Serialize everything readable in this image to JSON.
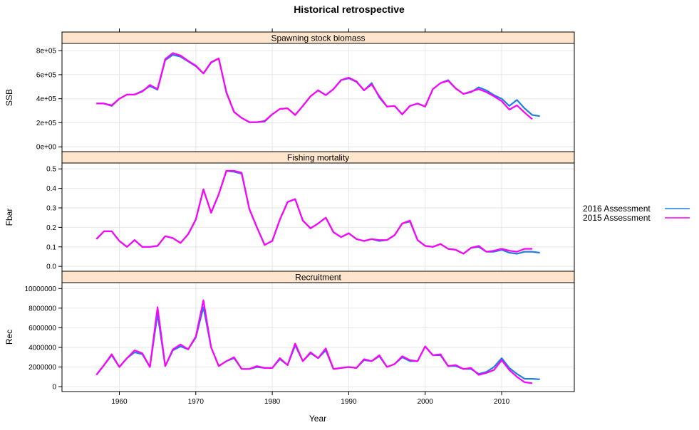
{
  "chart_data": {
    "type": "line",
    "title": "Historical retrospective",
    "xlabel": "Year",
    "xlim": [
      1952.5,
      2019.5
    ],
    "xticks": [
      1960,
      1970,
      1980,
      1990,
      2000,
      2010
    ],
    "legend": {
      "placement": "right",
      "entries": [
        {
          "name": "2016 Assessment",
          "color": "#1f7fe0"
        },
        {
          "name": "2015 Assessment",
          "color": "#ff00ff"
        }
      ]
    },
    "panels": [
      {
        "id": "ssb",
        "strip": "Spawning stock biomass",
        "ylabel": "SSB",
        "ylim": [
          -40000,
          860000
        ],
        "yticks": [
          0,
          200000,
          400000,
          600000,
          800000
        ],
        "yticklabels": [
          "0e+00",
          "2e+05",
          "4e+05",
          "6e+05",
          "8e+05"
        ],
        "series": [
          {
            "name": "2016 Assessment",
            "x": [
              1957,
              1958,
              1959,
              1960,
              1961,
              1962,
              1963,
              1964,
              1965,
              1966,
              1967,
              1968,
              1969,
              1970,
              1971,
              1972,
              1973,
              1974,
              1975,
              1976,
              1977,
              1978,
              1979,
              1980,
              1981,
              1982,
              1983,
              1984,
              1985,
              1986,
              1987,
              1988,
              1989,
              1990,
              1991,
              1992,
              1993,
              1994,
              1995,
              1996,
              1997,
              1998,
              1999,
              2000,
              2001,
              2002,
              2003,
              2004,
              2005,
              2006,
              2007,
              2008,
              2009,
              2010,
              2011,
              2012,
              2013,
              2014,
              2015
            ],
            "values": [
              360000,
              360000,
              340000,
              400000,
              435000,
              435000,
              465000,
              505000,
              475000,
              720000,
              765000,
              750000,
              710000,
              670000,
              610000,
              700000,
              735000,
              450000,
              290000,
              240000,
              205000,
              205000,
              210000,
              270000,
              315000,
              320000,
              265000,
              340000,
              420000,
              470000,
              430000,
              480000,
              555000,
              570000,
              540000,
              470000,
              530000,
              410000,
              335000,
              340000,
              270000,
              340000,
              360000,
              335000,
              480000,
              530000,
              555000,
              485000,
              440000,
              455000,
              495000,
              470000,
              430000,
              400000,
              340000,
              390000,
              320000,
              265000,
              255000
            ]
          },
          {
            "name": "2015 Assessment",
            "x": [
              1957,
              1958,
              1959,
              1960,
              1961,
              1962,
              1963,
              1964,
              1965,
              1966,
              1967,
              1968,
              1969,
              1970,
              1971,
              1972,
              1973,
              1974,
              1975,
              1976,
              1977,
              1978,
              1979,
              1980,
              1981,
              1982,
              1983,
              1984,
              1985,
              1986,
              1987,
              1988,
              1989,
              1990,
              1991,
              1992,
              1993,
              1994,
              1995,
              1996,
              1997,
              1998,
              1999,
              2000,
              2001,
              2002,
              2003,
              2004,
              2005,
              2006,
              2007,
              2008,
              2009,
              2010,
              2011,
              2012,
              2013,
              2014
            ],
            "values": [
              360000,
              360000,
              345000,
              400000,
              435000,
              435000,
              460000,
              515000,
              480000,
              730000,
              780000,
              760000,
              715000,
              675000,
              610000,
              705000,
              735000,
              455000,
              290000,
              240000,
              205000,
              205000,
              215000,
              270000,
              315000,
              320000,
              265000,
              340000,
              420000,
              470000,
              430000,
              480000,
              555000,
              575000,
              545000,
              470000,
              520000,
              420000,
              335000,
              340000,
              270000,
              340000,
              360000,
              335000,
              480000,
              530000,
              550000,
              485000,
              440000,
              460000,
              480000,
              455000,
              420000,
              380000,
              310000,
              345000,
              285000,
              230000
            ]
          }
        ]
      },
      {
        "id": "fbar",
        "strip": "Fishing mortality",
        "ylabel": "Fbar",
        "ylim": [
          -0.025,
          0.53
        ],
        "yticks": [
          0,
          0.1,
          0.2,
          0.3,
          0.4,
          0.5
        ],
        "yticklabels": [
          "0.0",
          "0.1",
          "0.2",
          "0.3",
          "0.4",
          "0.5"
        ],
        "series": [
          {
            "name": "2016 Assessment",
            "x": [
              1957,
              1958,
              1959,
              1960,
              1961,
              1962,
              1963,
              1964,
              1965,
              1966,
              1967,
              1968,
              1969,
              1970,
              1971,
              1972,
              1973,
              1974,
              1975,
              1976,
              1977,
              1978,
              1979,
              1980,
              1981,
              1982,
              1983,
              1984,
              1985,
              1986,
              1987,
              1988,
              1989,
              1990,
              1991,
              1992,
              1993,
              1994,
              1995,
              1996,
              1997,
              1998,
              1999,
              2000,
              2001,
              2002,
              2003,
              2004,
              2005,
              2006,
              2007,
              2008,
              2009,
              2010,
              2011,
              2012,
              2013,
              2014,
              2015
            ],
            "values": [
              0.14,
              0.18,
              0.18,
              0.13,
              0.1,
              0.135,
              0.1,
              0.1,
              0.105,
              0.155,
              0.145,
              0.12,
              0.165,
              0.24,
              0.395,
              0.275,
              0.37,
              0.49,
              0.485,
              0.475,
              0.295,
              0.2,
              0.11,
              0.13,
              0.24,
              0.33,
              0.345,
              0.235,
              0.195,
              0.22,
              0.25,
              0.175,
              0.15,
              0.17,
              0.14,
              0.13,
              0.14,
              0.13,
              0.135,
              0.16,
              0.22,
              0.23,
              0.135,
              0.105,
              0.1,
              0.115,
              0.09,
              0.085,
              0.065,
              0.095,
              0.1,
              0.075,
              0.075,
              0.085,
              0.07,
              0.065,
              0.075,
              0.075,
              0.07
            ]
          },
          {
            "name": "2015 Assessment",
            "x": [
              1957,
              1958,
              1959,
              1960,
              1961,
              1962,
              1963,
              1964,
              1965,
              1966,
              1967,
              1968,
              1969,
              1970,
              1971,
              1972,
              1973,
              1974,
              1975,
              1976,
              1977,
              1978,
              1979,
              1980,
              1981,
              1982,
              1983,
              1984,
              1985,
              1986,
              1987,
              1988,
              1989,
              1990,
              1991,
              1992,
              1993,
              1994,
              1995,
              1996,
              1997,
              1998,
              1999,
              2000,
              2001,
              2002,
              2003,
              2004,
              2005,
              2006,
              2007,
              2008,
              2009,
              2010,
              2011,
              2012,
              2013,
              2014
            ],
            "values": [
              0.14,
              0.18,
              0.18,
              0.13,
              0.1,
              0.135,
              0.1,
              0.1,
              0.105,
              0.155,
              0.145,
              0.12,
              0.165,
              0.24,
              0.395,
              0.275,
              0.37,
              0.49,
              0.49,
              0.48,
              0.295,
              0.2,
              0.11,
              0.13,
              0.24,
              0.33,
              0.345,
              0.235,
              0.195,
              0.22,
              0.25,
              0.175,
              0.15,
              0.17,
              0.14,
              0.13,
              0.14,
              0.135,
              0.135,
              0.16,
              0.22,
              0.235,
              0.135,
              0.105,
              0.1,
              0.115,
              0.09,
              0.085,
              0.065,
              0.095,
              0.105,
              0.075,
              0.08,
              0.09,
              0.08,
              0.075,
              0.09,
              0.09
            ]
          }
        ]
      },
      {
        "id": "rec",
        "strip": "Recruitment",
        "ylabel": "Rec",
        "ylim": [
          -500000,
          10600000
        ],
        "yticks": [
          0,
          2000000,
          4000000,
          6000000,
          8000000,
          10000000
        ],
        "yticklabels": [
          "0",
          "2000000",
          "4000000",
          "6000000",
          "8000000",
          "10000000"
        ],
        "series": [
          {
            "name": "2016 Assessment",
            "x": [
              1957,
              1958,
              1959,
              1960,
              1961,
              1962,
              1963,
              1964,
              1965,
              1966,
              1967,
              1968,
              1969,
              1970,
              1971,
              1972,
              1973,
              1974,
              1975,
              1976,
              1977,
              1978,
              1979,
              1980,
              1981,
              1982,
              1983,
              1984,
              1985,
              1986,
              1987,
              1988,
              1989,
              1990,
              1991,
              1992,
              1993,
              1994,
              1995,
              1996,
              1997,
              1998,
              1999,
              2000,
              2001,
              2002,
              2003,
              2004,
              2005,
              2006,
              2007,
              2008,
              2009,
              2010,
              2011,
              2012,
              2013,
              2014,
              2015
            ],
            "values": [
              1200000,
              2200000,
              3200000,
              2000000,
              2900000,
              3500000,
              3300000,
              2000000,
              7400000,
              2100000,
              3700000,
              4100000,
              3800000,
              5000000,
              8100000,
              4000000,
              2100000,
              2600000,
              2900000,
              1800000,
              1800000,
              2000000,
              1900000,
              1900000,
              2800000,
              2200000,
              4200000,
              2600000,
              3400000,
              2900000,
              3700000,
              1800000,
              1900000,
              2000000,
              1900000,
              2700000,
              2600000,
              3100000,
              2000000,
              2300000,
              3000000,
              2600000,
              2600000,
              4100000,
              3200000,
              3200000,
              2100000,
              2100000,
              1800000,
              1800000,
              1300000,
              1500000,
              2000000,
              2900000,
              1900000,
              1300000,
              800000,
              800000,
              750000
            ]
          },
          {
            "name": "2015 Assessment",
            "x": [
              1957,
              1958,
              1959,
              1960,
              1961,
              1962,
              1963,
              1964,
              1965,
              1966,
              1967,
              1968,
              1969,
              1970,
              1971,
              1972,
              1973,
              1974,
              1975,
              1976,
              1977,
              1978,
              1979,
              1980,
              1981,
              1982,
              1983,
              1984,
              1985,
              1986,
              1987,
              1988,
              1989,
              1990,
              1991,
              1992,
              1993,
              1994,
              1995,
              1996,
              1997,
              1998,
              1999,
              2000,
              2001,
              2002,
              2003,
              2004,
              2005,
              2006,
              2007,
              2008,
              2009,
              2010,
              2011,
              2012,
              2013,
              2014
            ],
            "values": [
              1200000,
              2200000,
              3300000,
              2000000,
              2900000,
              3700000,
              3400000,
              2000000,
              8100000,
              2100000,
              3800000,
              4300000,
              3800000,
              5100000,
              8800000,
              4000000,
              2100000,
              2600000,
              3000000,
              1800000,
              1800000,
              2100000,
              1900000,
              1900000,
              2900000,
              2200000,
              4400000,
              2600000,
              3500000,
              2900000,
              3900000,
              1800000,
              1900000,
              2000000,
              1900000,
              2800000,
              2600000,
              3200000,
              2000000,
              2300000,
              3100000,
              2700000,
              2600000,
              4100000,
              3200000,
              3300000,
              2100000,
              2200000,
              1800000,
              1900000,
              1200000,
              1400000,
              1700000,
              2700000,
              1700000,
              1000000,
              450000,
              350000
            ]
          }
        ]
      }
    ]
  }
}
